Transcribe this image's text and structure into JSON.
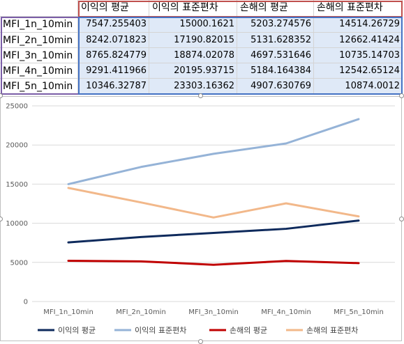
{
  "table": {
    "headers": [
      "이익의 평균",
      "이익의 표준편차",
      "손해의 평균",
      "손해의 표준편차"
    ],
    "rows": [
      {
        "label": "MFI_1n_10min",
        "values": [
          "7547.255403",
          "15000.1621",
          "5203.274576",
          "14514.26729"
        ]
      },
      {
        "label": "MFI_2n_10min",
        "values": [
          "8242.071823",
          "17190.82015",
          "5131.628352",
          "12662.41424"
        ]
      },
      {
        "label": "MFI_3n_10min",
        "values": [
          "8765.824779",
          "18874.02078",
          "4697.531646",
          "10735.14703"
        ]
      },
      {
        "label": "MFI_4n_10min",
        "values": [
          "9291.411966",
          "20195.93715",
          "5184.164384",
          "12542.65124"
        ]
      },
      {
        "label": "MFI_5n_10min",
        "values": [
          "10346.32787",
          "23303.16362",
          "4907.630769",
          "10874.0012"
        ]
      }
    ]
  },
  "chart_data": {
    "type": "line",
    "title": "",
    "xlabel": "",
    "ylabel": "",
    "categories": [
      "MFI_1n_10min",
      "MFI_2n_10min",
      "MFI_3n_10min",
      "MFI_4n_10min",
      "MFI_5n_10min"
    ],
    "ylim": [
      0,
      25000
    ],
    "yticks": [
      "0",
      "5000",
      "10000",
      "15000",
      "20000",
      "25000"
    ],
    "grid": true,
    "legend_position": "bottom",
    "series": [
      {
        "name": "이익의 평균",
        "color": "#0e2a5c",
        "values": [
          7547.255403,
          8242.071823,
          8765.824779,
          9291.411966,
          10346.32787
        ]
      },
      {
        "name": "이익의 표준편차",
        "color": "#95b3d7",
        "values": [
          15000.1621,
          17190.82015,
          18874.02078,
          20195.93715,
          23303.16362
        ]
      },
      {
        "name": "손해의 평균",
        "color": "#c00000",
        "values": [
          5203.274576,
          5131.628352,
          4697.531646,
          5184.164384,
          4907.630769
        ]
      },
      {
        "name": "손해의 표준편차",
        "color": "#f2b88a",
        "values": [
          14514.26729,
          12662.41424,
          10735.14703,
          12542.65124,
          10874.0012
        ]
      }
    ]
  }
}
